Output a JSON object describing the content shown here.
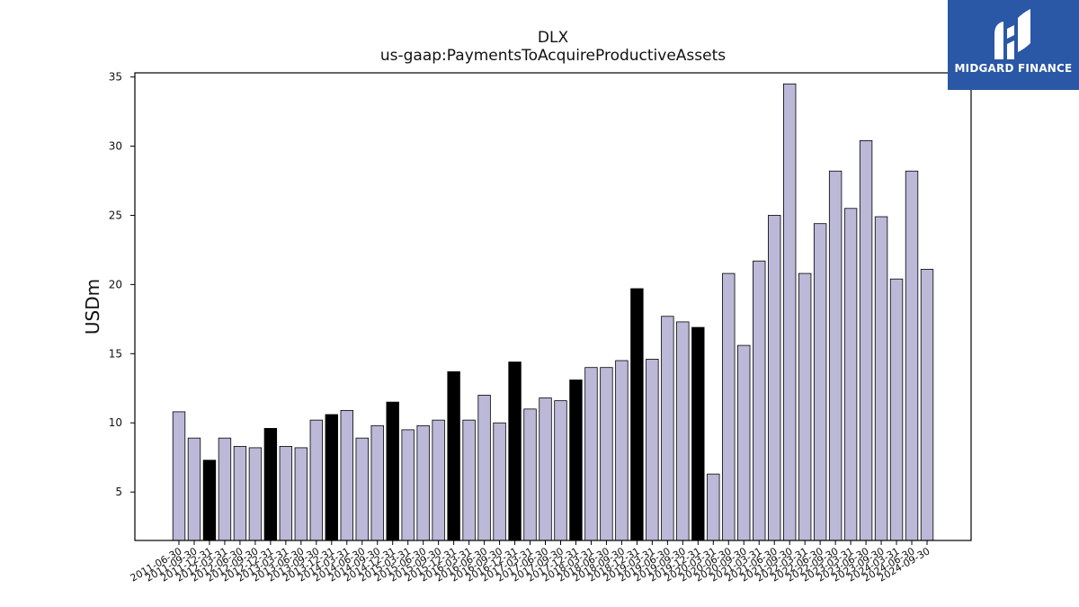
{
  "colors": {
    "bar_default": "#bcb8d8",
    "bar_highlight": "#000000",
    "bar_stroke": "#000000",
    "logo_bg": "#2a57a6"
  },
  "logo": {
    "text": "MIDGARD FINANCE",
    "icon": "midgard-logo-icon"
  },
  "chart_data": {
    "type": "bar",
    "title": "DLX",
    "subtitle": "us-gaap:PaymentsToAcquireProductiveAssets",
    "xlabel": "",
    "ylabel": "USDm",
    "ylim": [
      1.5,
      35.3
    ],
    "yticks": [
      5,
      10,
      15,
      20,
      25,
      30,
      35
    ],
    "grid": false,
    "categories": [
      "2011-06-30",
      "2011-09-30",
      "2011-12-31",
      "2012-03-31",
      "2012-06-30",
      "2012-09-30",
      "2012-12-31",
      "2013-03-31",
      "2013-06-30",
      "2013-09-30",
      "2013-12-31",
      "2014-03-31",
      "2014-06-30",
      "2014-09-30",
      "2014-12-31",
      "2015-03-31",
      "2015-06-30",
      "2015-09-30",
      "2015-12-31",
      "2016-03-31",
      "2016-06-30",
      "2016-09-30",
      "2016-12-31",
      "2017-03-31",
      "2017-06-30",
      "2017-09-30",
      "2017-12-31",
      "2018-03-31",
      "2018-06-30",
      "2018-09-30",
      "2018-12-31",
      "2019-03-31",
      "2019-06-30",
      "2019-09-30",
      "2019-12-31",
      "2020-03-31",
      "2020-06-30",
      "2020-09-30",
      "2021-03-31",
      "2021-06-30",
      "2021-09-30",
      "2022-03-31",
      "2022-06-30",
      "2022-09-30",
      "2023-03-31",
      "2023-06-30",
      "2023-09-30",
      "2024-03-31",
      "2024-06-30",
      "2024-09-30"
    ],
    "values": [
      10.8,
      8.9,
      7.3,
      8.9,
      8.3,
      8.2,
      9.6,
      8.3,
      8.2,
      10.2,
      10.6,
      10.9,
      8.9,
      9.8,
      11.5,
      9.5,
      9.8,
      10.2,
      13.7,
      10.2,
      12.0,
      10.0,
      14.4,
      11.0,
      11.8,
      11.6,
      13.1,
      14.0,
      14.0,
      14.5,
      19.7,
      14.6,
      17.7,
      17.3,
      16.9,
      6.3,
      20.8,
      15.6,
      21.7,
      25.0,
      34.5,
      20.8,
      24.4,
      28.2,
      25.5,
      30.4,
      24.9,
      20.4,
      28.2,
      21.1
    ],
    "highlight_indices": [
      2,
      6,
      10,
      14,
      18,
      22,
      26,
      30,
      34
    ]
  }
}
